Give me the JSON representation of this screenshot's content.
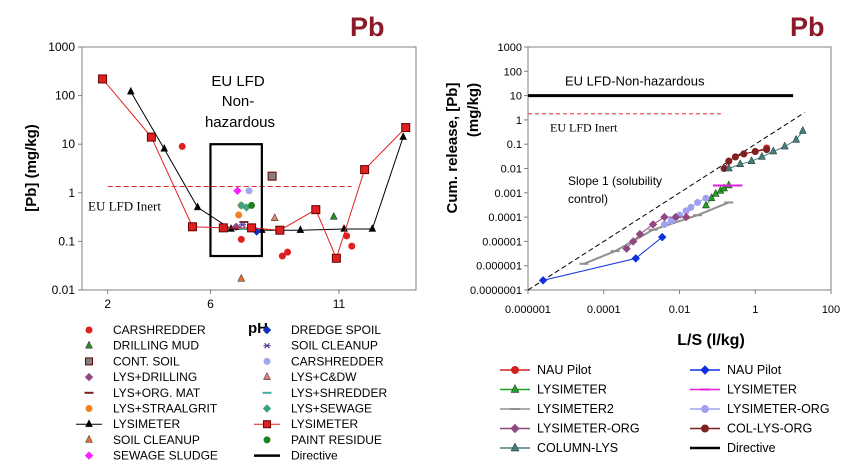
{
  "chart_data": [
    {
      "type": "scatter",
      "title": "Pb",
      "xlabel": "pH",
      "ylabel": "[Pb] (mg/kg)",
      "y_scale": "log",
      "xlim": [
        1,
        14
      ],
      "ylim": [
        0.01,
        1000
      ],
      "x_ticks": [
        "2",
        "6",
        "11"
      ],
      "x_tick_values": [
        2,
        6,
        11
      ],
      "y_ticks": [
        "0.01",
        "0.1",
        "1",
        "10",
        "100",
        "1000"
      ],
      "annotations": {
        "box_label": "EU LFD Non-hazardous",
        "box_lines": [
          "EU LFD",
          "Non-",
          "hazardous"
        ],
        "inert_label": "EU LFD Inert"
      },
      "reference_lines": [
        {
          "name": "EU LFD Inert",
          "y": 1.35,
          "x": [
            2,
            11.5
          ],
          "style": "dashed",
          "color": "#e03030"
        }
      ],
      "box": {
        "x": [
          6,
          8
        ],
        "y": [
          0.05,
          10
        ]
      },
      "series": [
        {
          "name": "CARSHREDDER",
          "color": "#e02020",
          "marker": "circle",
          "line": false,
          "x": [
            4.9,
            7.2,
            8.8,
            9.0,
            11.3,
            11.5
          ],
          "y": [
            9,
            0.11,
            0.05,
            0.06,
            0.13,
            0.08
          ]
        },
        {
          "name": "DRILLING MUD",
          "color": "#2a8a2a",
          "marker": "triangle",
          "line": false,
          "x": [
            10.8
          ],
          "y": [
            0.32
          ]
        },
        {
          "name": "CONT. SOIL",
          "color": "#808080",
          "marker": "square",
          "line": false,
          "x": [
            8.4
          ],
          "y": [
            2.2
          ]
        },
        {
          "name": "LYS+DRILLING",
          "color": "#904880",
          "marker": "diamond",
          "line": false,
          "x": [
            7.0
          ],
          "y": [
            0.2
          ]
        },
        {
          "name": "LYS+ORG. MAT",
          "color": "#802020",
          "marker": "dash",
          "line": false,
          "x": [
            7.3
          ],
          "y": [
            0.25
          ]
        },
        {
          "name": "LYS+STRAALGRIT",
          "color": "#f08020",
          "marker": "circle",
          "line": false,
          "x": [
            7.1,
            7.2
          ],
          "y": [
            0.35,
            0.55
          ]
        },
        {
          "name": "LYSIMETER",
          "color": "#000000",
          "marker": "triangle",
          "line": true,
          "x": [
            2.9,
            4.2,
            5.5,
            6.8,
            8.0,
            9.5,
            11.2,
            12.3,
            13.5
          ],
          "y": [
            120,
            8,
            0.5,
            0.18,
            0.17,
            0.17,
            0.18,
            0.18,
            14
          ]
        },
        {
          "name": "SOIL CLEANUP",
          "color": "#e07030",
          "marker": "triangle",
          "line": false,
          "x": [
            7.2
          ],
          "y": [
            0.017
          ]
        },
        {
          "name": "SEWAGE SLUDGE",
          "color": "#ff20ff",
          "marker": "diamond",
          "line": false,
          "x": [
            7.05
          ],
          "y": [
            1.1
          ]
        },
        {
          "name": "DREDGE SPOIL",
          "color": "#1030c0",
          "marker": "diamond",
          "line": false,
          "x": [
            7.8
          ],
          "y": [
            0.16
          ]
        },
        {
          "name": "SOIL CLEANUP",
          "color": "#6040a0",
          "marker": "star",
          "line": false,
          "x": [
            7.25
          ],
          "y": [
            0.22
          ]
        },
        {
          "name": "CARSHREDDER",
          "color": "#a0a8f0",
          "marker": "circle",
          "line": false,
          "x": [
            7.5
          ],
          "y": [
            1.1
          ]
        },
        {
          "name": "LYS+C&DW",
          "color": "#e08070",
          "marker": "triangle",
          "line": false,
          "x": [
            8.5
          ],
          "y": [
            0.3
          ]
        },
        {
          "name": "LYS+SHREDDER",
          "color": "#40b0a0",
          "marker": "dash",
          "line": false,
          "x": [
            7.3
          ],
          "y": [
            0.18
          ]
        },
        {
          "name": "LYS+SEWAGE",
          "color": "#40a080",
          "marker": "diamond",
          "line": false,
          "x": [
            7.2,
            7.4
          ],
          "y": [
            0.55,
            0.5
          ]
        },
        {
          "name": "LYSIMETER",
          "color": "#e02020",
          "marker": "square",
          "line": true,
          "x": [
            1.8,
            3.7,
            5.3,
            6.5,
            7.6,
            8.7,
            10.1,
            10.9,
            12.0,
            13.6
          ],
          "y": [
            220,
            14,
            0.2,
            0.19,
            0.19,
            0.17,
            0.45,
            0.045,
            3,
            22
          ]
        },
        {
          "name": "PAINT RESIDUE",
          "color": "#208020",
          "marker": "circle",
          "line": false,
          "x": [
            7.6
          ],
          "y": [
            0.55
          ]
        },
        {
          "name": "Directive",
          "color": "#000000",
          "marker": "none",
          "line": true,
          "x": [],
          "y": []
        }
      ]
    },
    {
      "type": "line",
      "title": "Pb",
      "xlabel": "L/S (l/kg)",
      "ylabel": "Cum. release, [Pb] (mg/kg)",
      "x_scale": "log",
      "y_scale": "log",
      "xlim": [
        1e-06,
        100
      ],
      "ylim": [
        1e-07,
        1000
      ],
      "x_ticks": [
        "0.000001",
        "0.0001",
        "0.01",
        "1",
        "100"
      ],
      "x_tick_values": [
        1e-06,
        0.0001,
        0.01,
        1,
        100
      ],
      "y_ticks": [
        "0.0000001",
        "0.000001",
        "0.00001",
        "0.0001",
        "0.001",
        "0.01",
        "0.1",
        "1",
        "10",
        "100",
        "1000"
      ],
      "annotations": {
        "directive_label": "EU LFD-Non-hazardous",
        "inert_label": "EU LFD Inert",
        "slope_lines": [
          "Slope 1 (solubility",
          "control)"
        ]
      },
      "reference_lines": [
        {
          "name": "EU LFD-Non-hazardous",
          "y": 10,
          "x": [
            1e-06,
            10
          ],
          "style": "solid",
          "color": "#000000"
        },
        {
          "name": "EU LFD Inert",
          "y": 1.8,
          "x": [
            1e-06,
            0.15
          ],
          "style": "dashed",
          "color": "#e03030"
        },
        {
          "name": "Slope 1",
          "x": [
            1e-06,
            20
          ],
          "y": [
            1e-07,
            2
          ],
          "style": "dashed",
          "color": "#000000"
        }
      ],
      "series": [
        {
          "name": "NAU Pilot",
          "color": "#d02020",
          "marker": "circle",
          "x": [
            0.2,
            0.3,
            0.5,
            1,
            2
          ],
          "y": [
            0.02,
            0.03,
            0.04,
            0.05,
            0.07
          ]
        },
        {
          "name": "NAU Pilot",
          "color": "#1030e0",
          "marker": "diamond",
          "x": [
            2.5e-06,
            0.0007,
            0.0035
          ],
          "y": [
            2.5e-07,
            2e-06,
            1.5e-05
          ]
        },
        {
          "name": "LYSIMETER",
          "color": "#20a020",
          "marker": "triangle",
          "x": [
            0.05,
            0.07,
            0.09,
            0.12,
            0.15,
            0.2
          ],
          "y": [
            0.0003,
            0.0006,
            0.0009,
            0.0012,
            0.0015,
            0.002
          ]
        },
        {
          "name": "LYSIMETER",
          "color": "#e020e0",
          "marker": "dash",
          "x": [
            0.1,
            0.2,
            0.35
          ],
          "y": [
            0.002,
            0.002,
            0.002
          ]
        },
        {
          "name": "LYSIMETER2",
          "color": "#909090",
          "marker": "dash",
          "x": [
            3e-05,
            0.0002,
            0.002,
            0.03,
            0.2
          ],
          "y": [
            1.2e-06,
            4e-06,
            3e-05,
            0.00012,
            0.0004
          ]
        },
        {
          "name": "LYSIMETER-ORG",
          "color": "#a0a0f0",
          "marker": "circle",
          "x": [
            0.004,
            0.006,
            0.008,
            0.01,
            0.015,
            0.02,
            0.03,
            0.05
          ],
          "y": [
            5e-05,
            7e-05,
            0.0001,
            0.00012,
            0.00018,
            0.00025,
            0.0004,
            0.0006
          ]
        },
        {
          "name": "LYSIMETER-ORG",
          "color": "#904880",
          "marker": "diamond",
          "x": [
            0.0004,
            0.0006,
            0.0009,
            0.002,
            0.004,
            0.008,
            0.015
          ],
          "y": [
            5e-06,
            1e-05,
            2e-05,
            5e-05,
            0.0001,
            0.0001,
            0.0001
          ]
        },
        {
          "name": "COL-LYS-ORG",
          "color": "#802020",
          "marker": "circle",
          "x": [
            0.15,
            0.2,
            0.3,
            0.5,
            1.0,
            2.0
          ],
          "y": [
            0.01,
            0.02,
            0.03,
            0.04,
            0.05,
            0.06
          ]
        },
        {
          "name": "COLUMN-LYS",
          "color": "#408080",
          "marker": "triangle",
          "x": [
            0.2,
            0.4,
            0.8,
            1.5,
            3,
            6,
            12,
            18
          ],
          "y": [
            0.01,
            0.015,
            0.02,
            0.03,
            0.05,
            0.08,
            0.15,
            0.35
          ]
        },
        {
          "name": "Directive",
          "color": "#000000",
          "marker": "none",
          "x": [],
          "y": []
        }
      ]
    }
  ]
}
